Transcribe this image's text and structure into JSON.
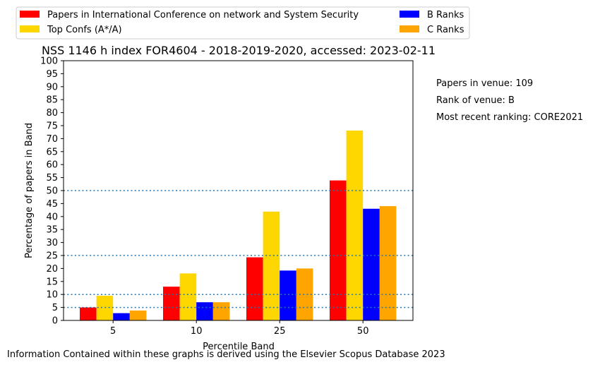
{
  "chart_data": {
    "type": "bar",
    "title": "NSS 1146 h index FOR4604 - 2018-2019-2020, accessed: 2023-02-11",
    "xlabel": "Percentile Band",
    "ylabel": "Percentage of papers in Band",
    "categories": [
      "5",
      "10",
      "25",
      "50"
    ],
    "ylim": [
      0,
      100
    ],
    "yticks": [
      0,
      5,
      10,
      15,
      20,
      25,
      30,
      35,
      40,
      45,
      50,
      55,
      60,
      65,
      70,
      75,
      80,
      85,
      90,
      95,
      100
    ],
    "reference_lines": [
      5,
      10,
      25,
      50
    ],
    "grid": false,
    "legend_position": "top",
    "series": [
      {
        "name": "Papers in International Conference on network and System Security",
        "color": "#ff0000",
        "values": [
          5.0,
          13.0,
          24.3,
          53.9
        ]
      },
      {
        "name": "Top Confs (A*/A)",
        "color": "#ffd700",
        "values": [
          9.5,
          18.1,
          41.9,
          73.1
        ]
      },
      {
        "name": "B Ranks",
        "color": "#0000ff",
        "values": [
          2.8,
          7.0,
          19.2,
          43.0
        ]
      },
      {
        "name": "C Ranks",
        "color": "#ffa500",
        "values": [
          3.8,
          7.0,
          20.0,
          44.0
        ]
      }
    ]
  },
  "info": {
    "papers_in_venue": "Papers in venue: 109",
    "rank_of_venue": "Rank of venue: B",
    "recent_ranking": "Most recent ranking: CORE2021"
  },
  "footer": "Information Contained within these graphs is derived using the Elsevier Scopus Database 2023",
  "colors": {
    "reference_line": "#1f77b4"
  }
}
